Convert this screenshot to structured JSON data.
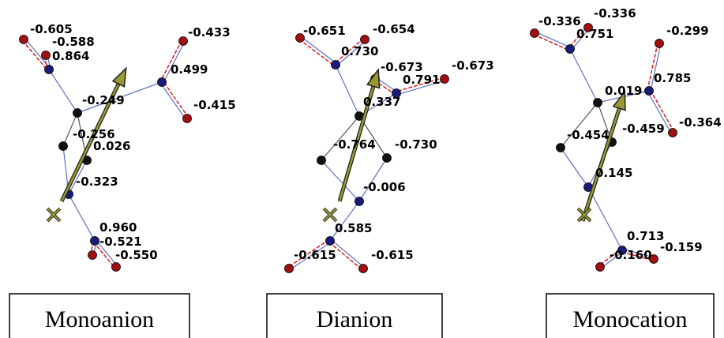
{
  "panels": [
    {
      "caption": "Monoanion",
      "charges": [
        "-0.605",
        "-0.588",
        "0.864",
        "-0.249",
        "-0.256",
        "0.026",
        "-0.323",
        "0.960",
        "-0.521",
        "-0.550",
        "-0.433",
        "0.499",
        "-0.415"
      ]
    },
    {
      "caption": "Dianion",
      "charges": [
        "-0.651",
        "-0.654",
        "0.730",
        "-0.673",
        "0.791",
        "-0.673",
        "0.337",
        "-0.764",
        "-0.730",
        "-0.006",
        "0.585",
        "-0.615",
        "-0.615"
      ]
    },
    {
      "caption": "Monocation",
      "charges": [
        "-0.336",
        "-0.336",
        "0.751",
        "-0.299",
        "0.785",
        "0.019",
        "-0.364",
        "-0.454",
        "-0.459",
        "0.145",
        "0.713",
        "-0.160",
        "-0.159"
      ]
    }
  ]
}
